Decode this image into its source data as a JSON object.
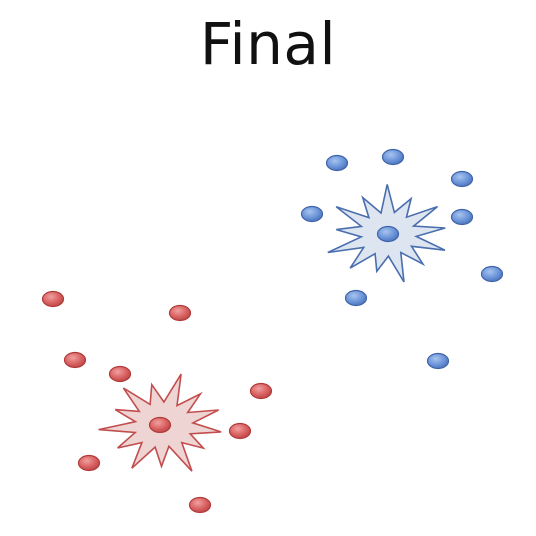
{
  "title": "Final",
  "colors": {
    "red_point_fill": "#d96060",
    "red_point_stroke": "#b03a3a",
    "red_star_fill": "#ecd0cf",
    "red_star_stroke": "#c24e4e",
    "blue_point_fill": "#6a93d8",
    "blue_point_stroke": "#3f63a8",
    "blue_star_fill": "#d9e2ef",
    "blue_star_stroke": "#4a6eae"
  },
  "clusters": [
    {
      "name": "red",
      "point_count": 9
    },
    {
      "name": "blue",
      "point_count": 9
    }
  ]
}
